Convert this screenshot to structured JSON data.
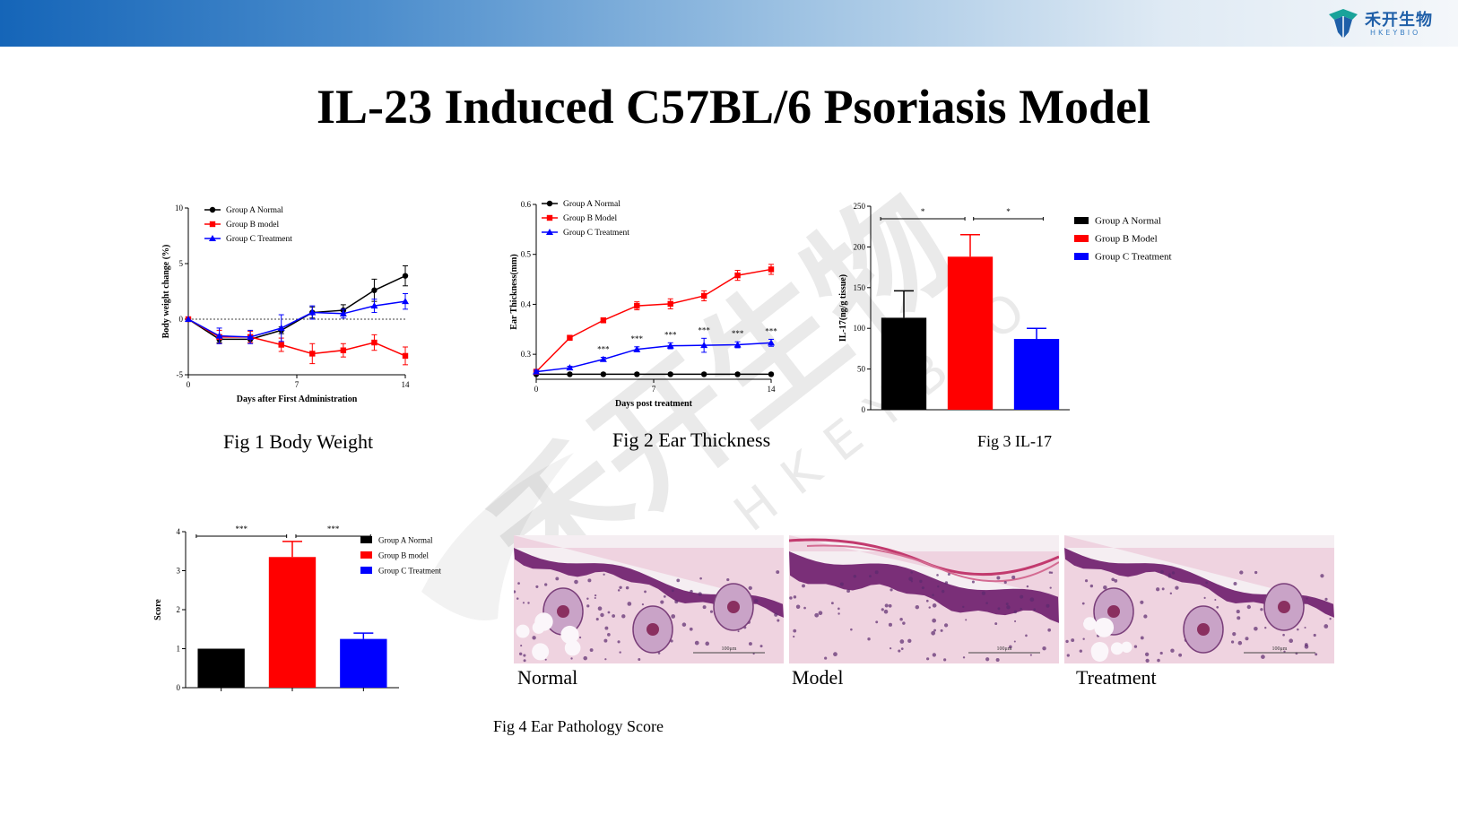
{
  "header": {
    "logo_cn": "禾开生物",
    "logo_en": "HKEYBIO",
    "colors": {
      "bar_start": "#1565b8",
      "bar_end": "#f4f7fa",
      "logo": "#1f5fa8"
    },
    "logo_icon": "leaf-shield-icon"
  },
  "title": "IL-23 Induced C57BL/6 Psoriasis Model",
  "watermark": {
    "cn": "禾开生物",
    "en": "HKEYBIO"
  },
  "captions": {
    "fig1": "Fig 1 Body Weight",
    "fig2": "Fig 2 Ear Thickness",
    "fig3": "Fig 3  IL-17",
    "fig4": "Fig 4  Ear Pathology Score"
  },
  "histology": {
    "labels": [
      "Normal",
      "Model",
      "Treatment"
    ],
    "scale_text": "100μm"
  },
  "chart_data": [
    {
      "id": "fig1",
      "type": "line",
      "ylabel": "Body weight change (%)",
      "xlabel": "Days after First Administration",
      "xlim": [
        0,
        14
      ],
      "ylim": [
        -5,
        10
      ],
      "xticks": [
        0,
        7,
        14
      ],
      "yticks": [
        -5,
        0,
        5,
        10
      ],
      "baseline": 0,
      "series": [
        {
          "name": "Group A Normal",
          "color": "#000000",
          "marker": "circle",
          "x": [
            0,
            2,
            4,
            6,
            8,
            10,
            12,
            14
          ],
          "y": [
            0,
            -1.8,
            -1.8,
            -1.0,
            0.6,
            0.8,
            2.6,
            3.9
          ],
          "err": [
            0,
            0.3,
            0.3,
            0.3,
            0.5,
            0.5,
            1.0,
            0.9
          ]
        },
        {
          "name": "Group B model",
          "color": "#ff0000",
          "marker": "square",
          "x": [
            0,
            2,
            4,
            6,
            8,
            10,
            12,
            14
          ],
          "y": [
            0,
            -1.6,
            -1.6,
            -2.3,
            -3.1,
            -2.8,
            -2.1,
            -3.3
          ],
          "err": [
            0,
            0.6,
            0.5,
            0.6,
            0.9,
            0.6,
            0.7,
            0.8
          ]
        },
        {
          "name": "Group C Treatment",
          "color": "#0000ff",
          "marker": "triangle",
          "x": [
            0,
            2,
            4,
            6,
            8,
            10,
            12,
            14
          ],
          "y": [
            0,
            -1.5,
            -1.6,
            -0.8,
            0.6,
            0.5,
            1.2,
            1.6
          ],
          "err": [
            0,
            0.7,
            0.6,
            1.2,
            0.6,
            0.4,
            0.6,
            0.7
          ]
        }
      ]
    },
    {
      "id": "fig2",
      "type": "line",
      "ylabel": "Ear Thickness(mm)",
      "xlabel": "Days post treatment",
      "xlim": [
        0,
        14
      ],
      "ylim": [
        0.25,
        0.6
      ],
      "xticks": [
        0,
        7,
        14
      ],
      "yticks": [
        0.3,
        0.4,
        0.5,
        0.6
      ],
      "series": [
        {
          "name": "Group A Normal",
          "color": "#000000",
          "marker": "circle",
          "x": [
            0,
            2,
            4,
            6,
            8,
            10,
            12,
            14
          ],
          "y": [
            0.26,
            0.26,
            0.26,
            0.26,
            0.26,
            0.26,
            0.26,
            0.26
          ],
          "err": [
            0,
            0,
            0,
            0,
            0,
            0,
            0,
            0
          ]
        },
        {
          "name": "Group B Model",
          "color": "#ff0000",
          "marker": "square",
          "x": [
            0,
            2,
            4,
            6,
            8,
            10,
            12,
            14
          ],
          "y": [
            0.265,
            0.333,
            0.368,
            0.397,
            0.401,
            0.417,
            0.458,
            0.47
          ],
          "err": [
            0.005,
            0.005,
            0.005,
            0.008,
            0.01,
            0.01,
            0.01,
            0.01
          ]
        },
        {
          "name": "Group C Treatment",
          "color": "#0000ff",
          "marker": "triangle",
          "x": [
            0,
            2,
            4,
            6,
            8,
            10,
            12,
            14
          ],
          "y": [
            0.265,
            0.273,
            0.29,
            0.31,
            0.317,
            0.318,
            0.319,
            0.323
          ],
          "err": [
            0.003,
            0.003,
            0.004,
            0.005,
            0.006,
            0.014,
            0.006,
            0.007
          ]
        }
      ],
      "annotations": [
        {
          "x": 4,
          "text": "***"
        },
        {
          "x": 6,
          "text": "***"
        },
        {
          "x": 8,
          "text": "***"
        },
        {
          "x": 10,
          "text": "***"
        },
        {
          "x": 12,
          "text": "***"
        },
        {
          "x": 14,
          "text": "***"
        }
      ]
    },
    {
      "id": "fig3",
      "type": "bar",
      "ylabel": "IL-17(ng/g tissue)",
      "ylim": [
        0,
        250
      ],
      "yticks": [
        0,
        50,
        100,
        150,
        200,
        250
      ],
      "categories": [
        "Group A Normal",
        "Group B Model",
        "Group C Treatment"
      ],
      "values": [
        113,
        188,
        87
      ],
      "err": [
        33,
        27,
        13
      ],
      "colors": [
        "#000000",
        "#ff0000",
        "#0000ff"
      ],
      "significance": [
        {
          "from": 0,
          "to": 1,
          "text": "*"
        },
        {
          "from": 1,
          "to": 2,
          "text": "*"
        }
      ]
    },
    {
      "id": "fig4",
      "type": "bar",
      "ylabel": "Score",
      "ylim": [
        0,
        4
      ],
      "yticks": [
        0,
        1,
        2,
        3,
        4
      ],
      "categories": [
        "Group A Normal",
        "Group B model",
        "Group C Treatment"
      ],
      "values": [
        1.0,
        3.35,
        1.25
      ],
      "err": [
        0,
        0.4,
        0.15
      ],
      "colors": [
        "#000000",
        "#ff0000",
        "#0000ff"
      ],
      "significance": [
        {
          "from": 0,
          "to": 1,
          "text": "***"
        },
        {
          "from": 1,
          "to": 2,
          "text": "***"
        }
      ]
    }
  ]
}
